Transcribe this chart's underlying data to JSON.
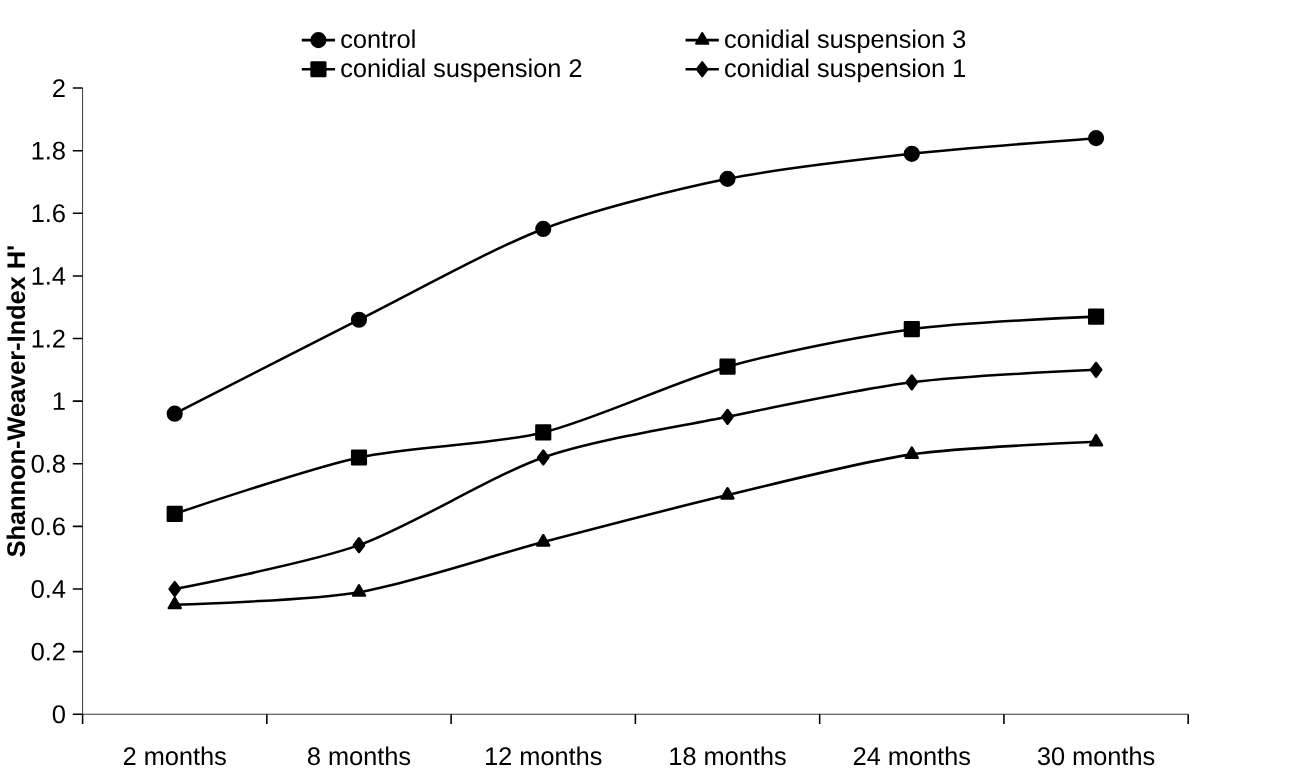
{
  "chart_data": {
    "type": "line",
    "ylabel": "Shannon-Weaver-Index H'",
    "categories": [
      "2 months",
      "8 months",
      "12 months",
      "18 months",
      "24 months",
      "30 months"
    ],
    "series": [
      {
        "name": "control",
        "color": "#000000",
        "marker": "circle",
        "values": [
          0.96,
          1.26,
          1.55,
          1.71,
          1.79,
          1.84
        ]
      },
      {
        "name": "conidial suspension 3",
        "color": "#000000",
        "marker": "triangle",
        "values": [
          0.35,
          0.39,
          0.55,
          0.7,
          0.83,
          0.87
        ]
      },
      {
        "name": "conidial suspension 2",
        "color": "#000000",
        "marker": "square",
        "values": [
          0.64,
          0.82,
          0.9,
          1.11,
          1.23,
          1.27
        ]
      },
      {
        "name": "conidial suspension 1",
        "color": "#000000",
        "marker": "diamond",
        "values": [
          0.4,
          0.54,
          0.82,
          0.95,
          1.06,
          1.1
        ]
      }
    ],
    "ylim": [
      0,
      2
    ],
    "yticks": [
      0,
      0.2,
      0.4,
      0.6,
      0.8,
      1,
      1.2,
      1.4,
      1.6,
      1.8,
      2
    ],
    "legend": "top",
    "line_style": "solid",
    "grid": false
  }
}
